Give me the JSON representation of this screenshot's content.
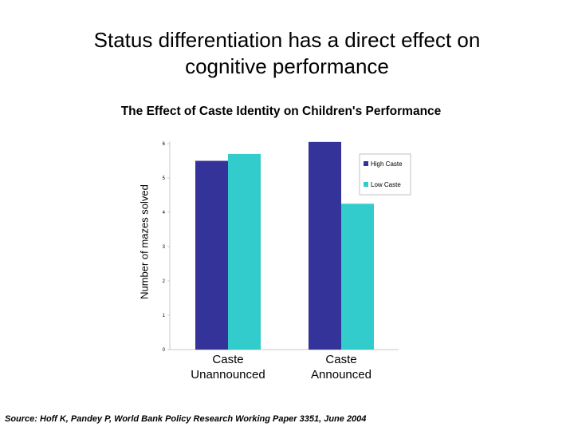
{
  "slide": {
    "title_line1": "Status differentiation has a direct effect on",
    "title_line2": "cognitive performance"
  },
  "source": "Source:  Hoff K, Pandey P, World Bank Policy Research Working Paper 3351, June 2004",
  "chart_data": {
    "type": "bar",
    "title": "The Effect of Caste Identity on Children's Performance",
    "ylabel": "Number of mazes solved",
    "xlabel": "",
    "ylim": [
      0,
      6
    ],
    "yticks": [
      "0",
      "1",
      "2",
      "3",
      "4",
      "5",
      "6"
    ],
    "categories": [
      [
        "Caste",
        "Unannounced"
      ],
      [
        "Caste",
        "Announced"
      ]
    ],
    "series": [
      {
        "name": "High Caste",
        "values": [
          5.5,
          6.05
        ],
        "color": "#333399"
      },
      {
        "name": "Low Caste",
        "values": [
          5.7,
          4.25
        ],
        "color": "#33cccc"
      }
    ],
    "legend_position": "right",
    "grid": false
  }
}
